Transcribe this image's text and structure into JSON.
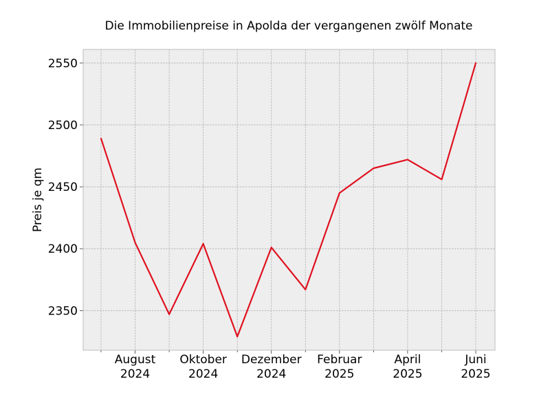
{
  "chart_data": {
    "type": "line",
    "title": "Die Immobilienpreise in Apolda der vergangenen zwölf Monate",
    "xlabel": "",
    "ylabel": "Preis je qm",
    "x": [
      "2024-07",
      "2024-08",
      "2024-09",
      "2024-10",
      "2024-11",
      "2024-12",
      "2025-01",
      "2025-02",
      "2025-03",
      "2025-04",
      "2025-05",
      "2025-06"
    ],
    "values": [
      2489,
      2405,
      2347,
      2404,
      2329,
      2401,
      2367,
      2445,
      2465,
      2472,
      2456,
      2550
    ],
    "ylim": [
      2318,
      2561
    ],
    "yticks": [
      2350,
      2400,
      2450,
      2500,
      2550
    ],
    "xtick_labels": [
      {
        "x": "2024-08",
        "line1": "August",
        "line2": "2024"
      },
      {
        "x": "2024-10",
        "line1": "Oktober",
        "line2": "2024"
      },
      {
        "x": "2024-12",
        "line1": "Dezember",
        "line2": "2024"
      },
      {
        "x": "2025-02",
        "line1": "Februar",
        "line2": "2025"
      },
      {
        "x": "2025-04",
        "line1": "April",
        "line2": "2025"
      },
      {
        "x": "2025-06",
        "line1": "Juni",
        "line2": "2025"
      }
    ],
    "grid": true,
    "colors": {
      "line": "#e0101e",
      "background": "#eeeeee",
      "grid": "#b0b0b0",
      "frame": "#bcbcbc"
    }
  }
}
